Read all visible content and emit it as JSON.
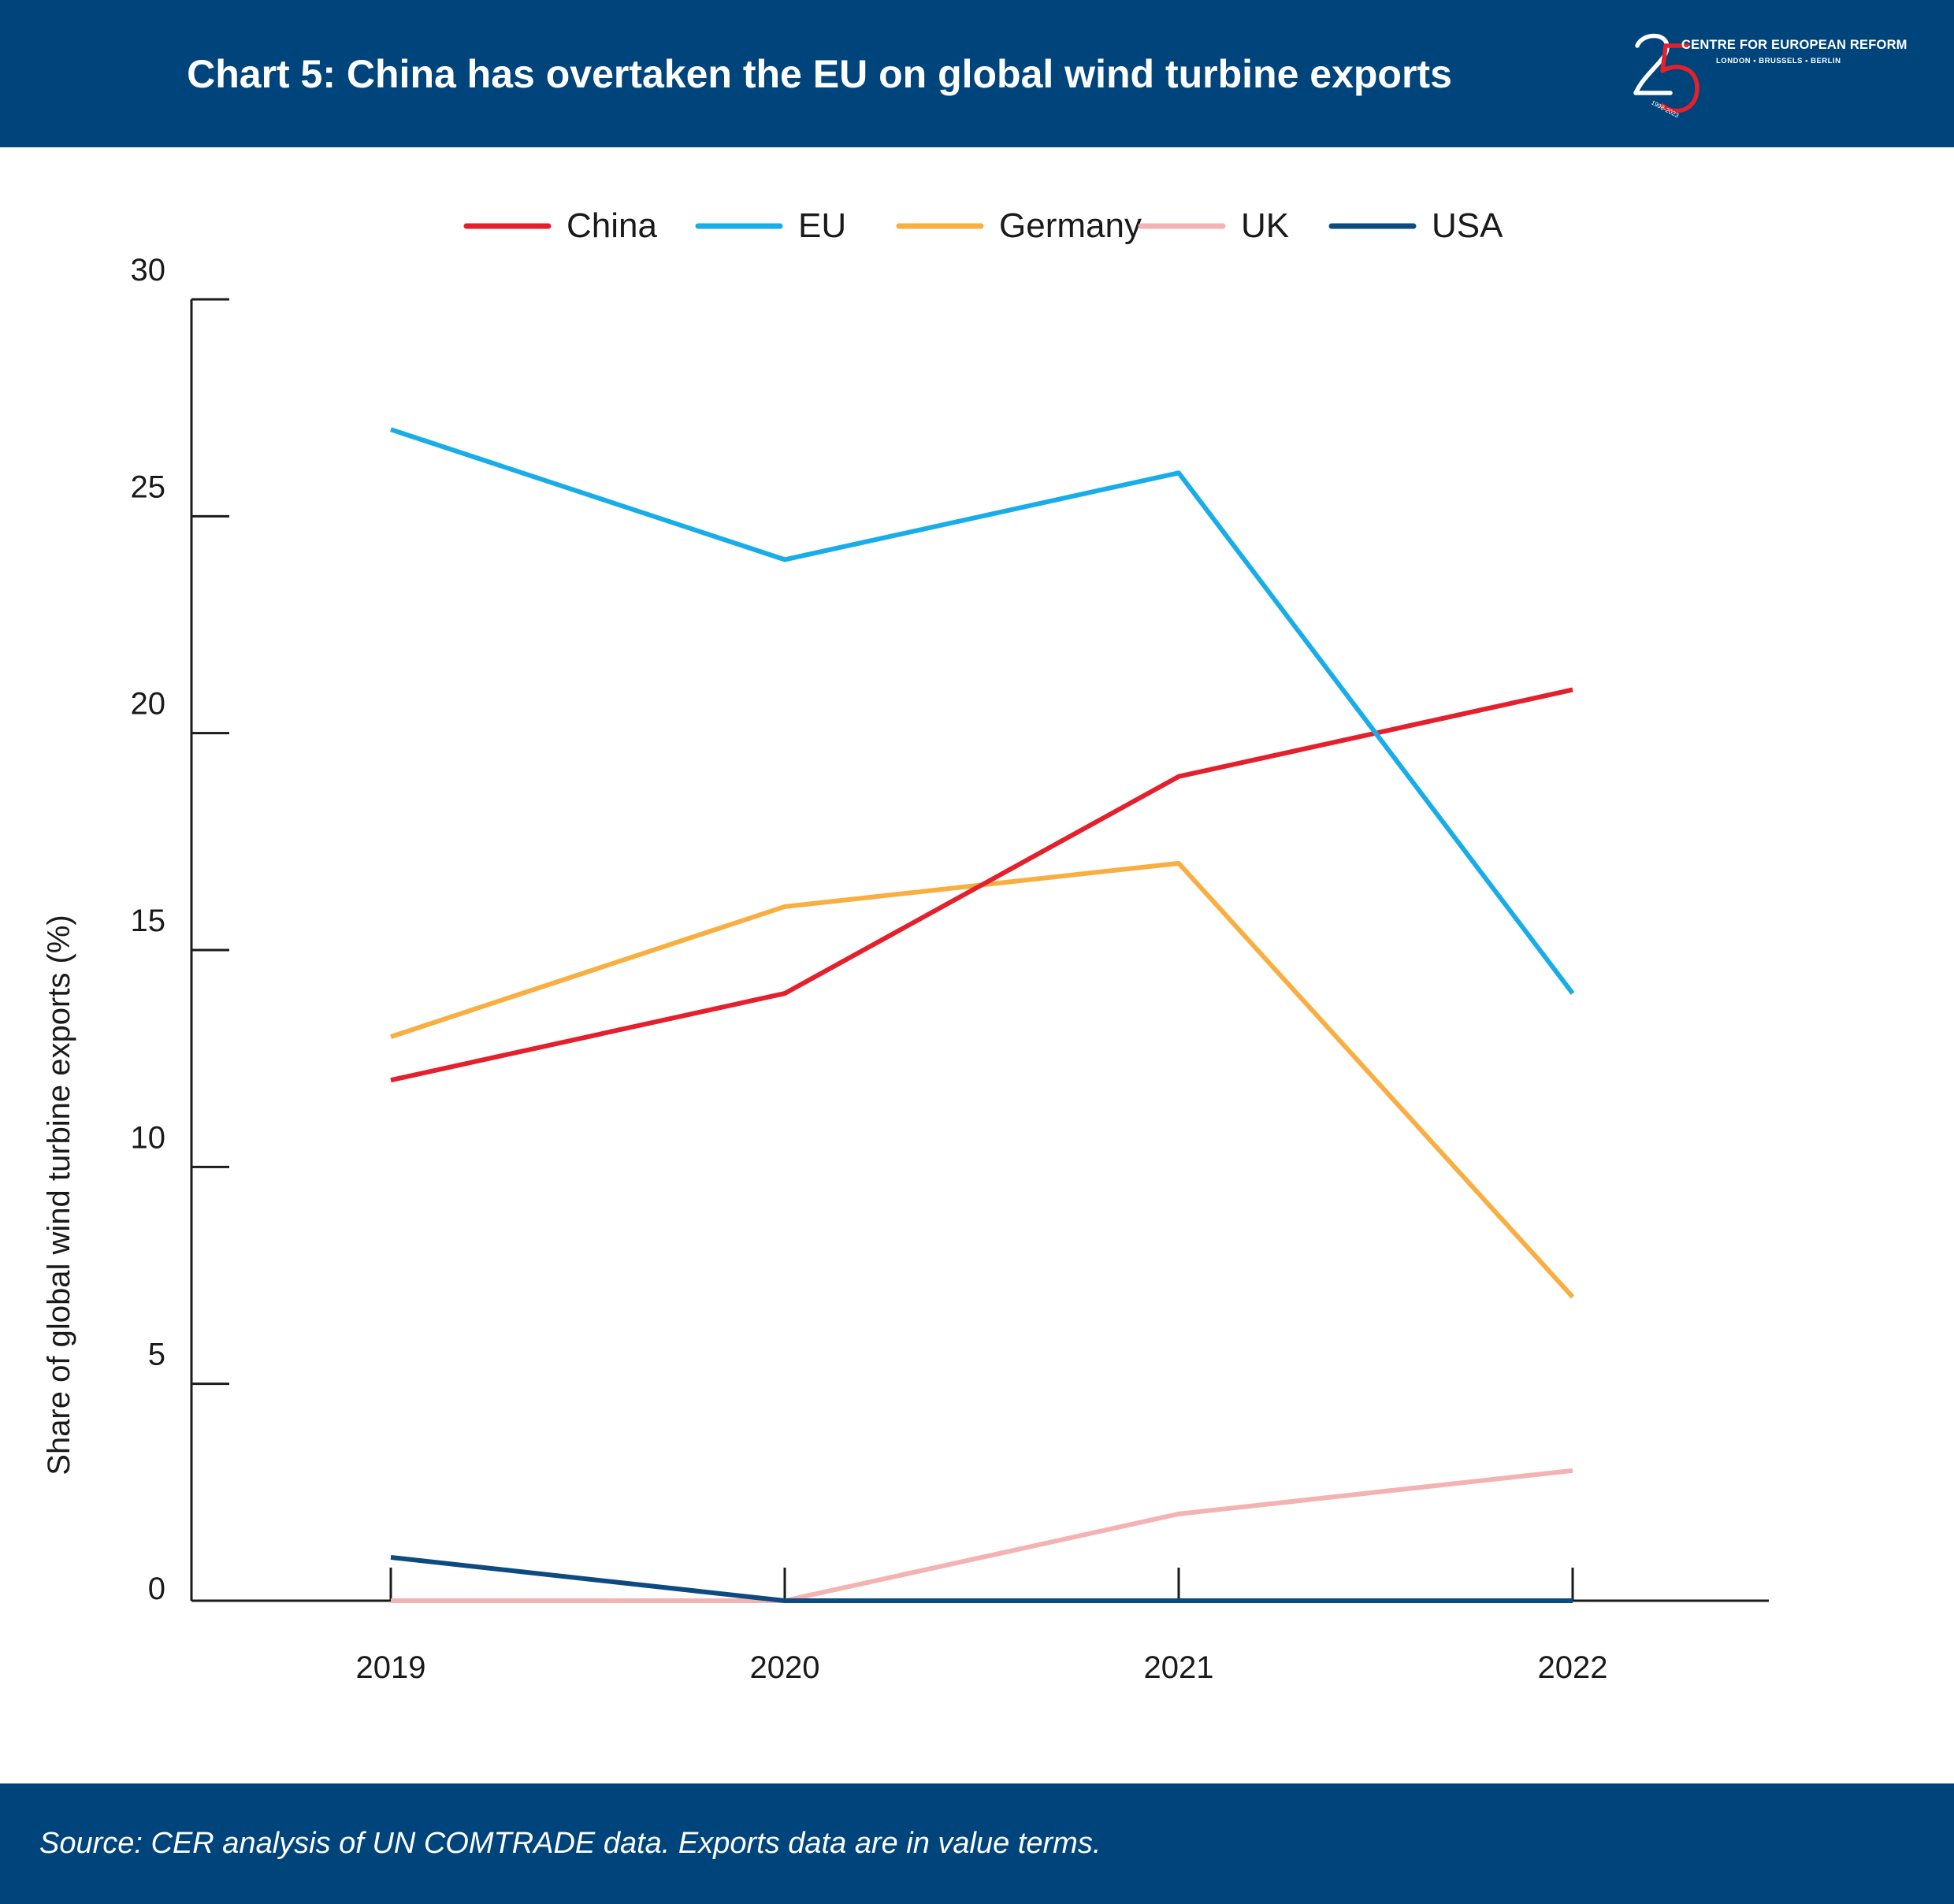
{
  "header": {
    "title": "Chart 5: China has overtaken the EU on global wind turbine exports",
    "logo": {
      "number": "25",
      "org": "CENTRE FOR EUROPEAN REFORM",
      "cities": "LONDON • BRUSSELS • BERLIN",
      "years": "1998-2023"
    }
  },
  "footer": {
    "source": "Source: CER analysis of UN COMTRADE data. Exports data are in value terms."
  },
  "chart_data": {
    "type": "line",
    "title": "Chart 5: China has overtaken the EU on global wind turbine exports",
    "xlabel": "",
    "ylabel": "Share of global wind turbine exports (%)",
    "categories": [
      "2019",
      "2020",
      "2021",
      "2022"
    ],
    "ylim": [
      0,
      30
    ],
    "yticks": [
      0,
      5,
      10,
      15,
      20,
      25,
      30
    ],
    "grid": false,
    "legend_position": "top-center",
    "series": [
      {
        "name": "China",
        "color": "#e3202c",
        "values": [
          12,
          14,
          19,
          21
        ]
      },
      {
        "name": "EU",
        "color": "#18ade8",
        "values": [
          27,
          24,
          26,
          14
        ]
      },
      {
        "name": "Germany",
        "color": "#f8ae40",
        "values": [
          13,
          16,
          17,
          7
        ]
      },
      {
        "name": "UK",
        "color": "#f4b3b3",
        "values": [
          0,
          0,
          2,
          3
        ]
      },
      {
        "name": "USA",
        "color": "#0d4a80",
        "values": [
          1,
          0,
          0,
          0
        ]
      }
    ],
    "series_draw_order": [
      "UK",
      "USA",
      "Germany",
      "China",
      "EU"
    ],
    "axis_color": "#1a1a1a"
  }
}
